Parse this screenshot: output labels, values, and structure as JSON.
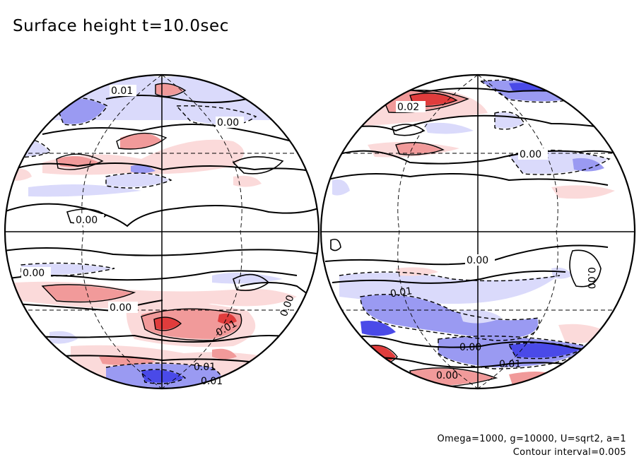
{
  "figure": {
    "title": "Surface height t=10.0sec",
    "params_line": "Omega=1000, g=10000, U=sqrt2, a=1",
    "interval_line": "Contour interval=0.005"
  },
  "colors": {
    "positive_strong": "#e03c3c",
    "positive_mid": "#f19a9a",
    "positive_light": "#fbdada",
    "negative_strong": "#4a4ae8",
    "negative_mid": "#9a9af2",
    "negative_light": "#dadafb",
    "line": "#000000"
  },
  "chart_data": {
    "type": "contour",
    "field": "surface height",
    "contour_interval": 0.005,
    "contour_labels_left": [
      "0.01",
      "0.00",
      "0.00",
      "0.00",
      "0.00",
      "0.01",
      "0.00",
      "0.01",
      "0.01"
    ],
    "contour_labels_right": [
      "0.02",
      "0.00",
      "0.00",
      "0.01",
      "0.00",
      "0.00",
      "0.01",
      "0.00"
    ]
  }
}
